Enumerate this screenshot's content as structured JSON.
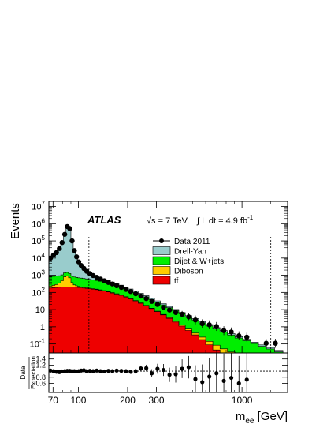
{
  "chart_data": {
    "type": "area",
    "experiment": "ATLAS",
    "energy_label": "√s = 7 TeV,",
    "lumi_label": "∫ L dt =  4.9 fb",
    "lumi_exp": "-1",
    "ylabel": "Events",
    "xlabel_main": "m",
    "xlabel_sub": "ee",
    "xlabel_unit": " [GeV]",
    "ratio_ylabel_top": "Data",
    "ratio_ylabel_bottom": "Expectation",
    "x_scale": "log",
    "xlim": [
      66,
      1900
    ],
    "ylim": [
      0.03,
      20000000
    ],
    "ratio_ylim": [
      0.3,
      1.6
    ],
    "x_ticks": [
      {
        "v": 70,
        "label": "70"
      },
      {
        "v": 100,
        "label": "100"
      },
      {
        "v": 200,
        "label": "200"
      },
      {
        "v": 300,
        "label": "300"
      },
      {
        "v": 1000,
        "label": "1000"
      }
    ],
    "y_ticks": [
      {
        "v": 0.1,
        "base": "10",
        "exp": "-1"
      },
      {
        "v": 1,
        "base": "1",
        "exp": ""
      },
      {
        "v": 10,
        "base": "10",
        "exp": ""
      },
      {
        "v": 100,
        "base": "10",
        "exp": "2"
      },
      {
        "v": 1000,
        "base": "10",
        "exp": "3"
      },
      {
        "v": 10000,
        "base": "10",
        "exp": "4"
      },
      {
        "v": 100000,
        "base": "10",
        "exp": "5"
      },
      {
        "v": 1000000,
        "base": "10",
        "exp": "6"
      },
      {
        "v": 10000000,
        "base": "10",
        "exp": "7"
      }
    ],
    "ratio_ticks": [
      {
        "v": 0.6,
        "label": "0.6"
      },
      {
        "v": 0.8,
        "label": "0.8"
      },
      {
        "v": 1.0,
        "label": "1"
      },
      {
        "v": 1.2,
        "label": "1.2"
      },
      {
        "v": 1.4,
        "label": "1.4"
      }
    ],
    "vlines": [
      116,
      1500
    ],
    "legend": [
      {
        "key": "data",
        "label": "Data 2011"
      },
      {
        "key": "dy",
        "label": "Drell-Yan"
      },
      {
        "key": "dijet",
        "label": "Dijet & W+jets"
      },
      {
        "key": "diboson",
        "label": "Diboson"
      },
      {
        "key": "ttbar",
        "label": "tt̄"
      }
    ],
    "colors": {
      "dy": "#99cccc",
      "dijet": "#00ee00",
      "diboson": "#ffcc00",
      "ttbar": "#ee0000",
      "data": "#000000"
    },
    "bin_edges": [
      66,
      69,
      72,
      75,
      78,
      81,
      84,
      87,
      90,
      93,
      96,
      99,
      102,
      106,
      110,
      115,
      120,
      126,
      133,
      140,
      148,
      157,
      166,
      177,
      189,
      202,
      216,
      232,
      250,
      270,
      292,
      317,
      345,
      376,
      411,
      450,
      494,
      544,
      600,
      663,
      734,
      815,
      906,
      1010,
      1130,
      1260,
      1410,
      1580,
      1780
    ],
    "series": [
      {
        "key": "ttbar",
        "name": "tt̄",
        "values": [
          180,
          190,
          195,
          200,
          205,
          210,
          212,
          212,
          210,
          205,
          200,
          195,
          188,
          180,
          172,
          163,
          155,
          145,
          133,
          120,
          107,
          93,
          80,
          67,
          54,
          42,
          32,
          23.5,
          17,
          11.5,
          7.6,
          4.9,
          3.1,
          1.9,
          1.1,
          0.62,
          0.34,
          0.18,
          0.09,
          0.045,
          0.022,
          0.011,
          0.005,
          0.0025,
          0.001,
          0.0005,
          0.0002,
          0.0001
        ]
      },
      {
        "key": "diboson",
        "name": "Diboson",
        "values": [
          55,
          70,
          95,
          150,
          280,
          600,
          700,
          500,
          160,
          70,
          42,
          28,
          22,
          18,
          15,
          13,
          11.5,
          10,
          8.6,
          7.3,
          6.1,
          5,
          4,
          3.2,
          2.5,
          1.95,
          1.5,
          1.15,
          0.88,
          0.66,
          0.5,
          0.38,
          0.28,
          0.21,
          0.16,
          0.12,
          0.09,
          0.07,
          0.052,
          0.04,
          0.03,
          0.023,
          0.017,
          0.013,
          0.01,
          0.008,
          0.006,
          0.0045
        ]
      },
      {
        "key": "dijet",
        "name": "Dijet & W+jets",
        "values": [
          600,
          600,
          595,
          585,
          575,
          565,
          555,
          545,
          535,
          520,
          505,
          490,
          470,
          448,
          425,
          400,
          370,
          340,
          305,
          270,
          235,
          200,
          168,
          138,
          110,
          86,
          66,
          50,
          37,
          27,
          19.5,
          13.8,
          9.6,
          6.6,
          4.5,
          3,
          2.1,
          1.45,
          0.98,
          0.66,
          0.45,
          0.3,
          0.2,
          0.14,
          0.095,
          0.065,
          0.045,
          0.03
        ]
      },
      {
        "key": "dy",
        "name": "Drell-Yan",
        "values": [
          9000,
          14000,
          20000,
          34000,
          75000,
          230000,
          650000,
          500000,
          95000,
          26000,
          11000,
          5400,
          3100,
          1900,
          1200,
          800,
          560,
          400,
          280,
          200,
          145,
          105,
          76,
          55,
          40,
          28.5,
          20,
          14.2,
          10,
          6.9,
          4.8,
          3.3,
          2.25,
          1.52,
          1.03,
          0.7,
          0.47,
          0.32,
          0.22,
          0.15,
          0.1,
          0.069,
          0.047,
          0.033,
          0.022,
          0.015,
          0.011,
          0.0075
        ]
      }
    ],
    "data_points": [
      {
        "x": 67.5,
        "y": 10000
      },
      {
        "x": 70.5,
        "y": 15000
      },
      {
        "x": 73.5,
        "y": 21000
      },
      {
        "x": 76.5,
        "y": 36000
      },
      {
        "x": 79.5,
        "y": 80000
      },
      {
        "x": 82.5,
        "y": 240000
      },
      {
        "x": 85.5,
        "y": 680000
      },
      {
        "x": 88.5,
        "y": 520000
      },
      {
        "x": 91.5,
        "y": 100000
      },
      {
        "x": 94.5,
        "y": 27500
      },
      {
        "x": 97.5,
        "y": 11800
      },
      {
        "x": 100.5,
        "y": 6000
      },
      {
        "x": 104,
        "y": 3700
      },
      {
        "x": 108,
        "y": 2500
      },
      {
        "x": 112.5,
        "y": 1700
      },
      {
        "x": 117.5,
        "y": 1250
      },
      {
        "x": 123,
        "y": 960
      },
      {
        "x": 129.5,
        "y": 760
      },
      {
        "x": 136.5,
        "y": 600
      },
      {
        "x": 144,
        "y": 480
      },
      {
        "x": 152.5,
        "y": 380
      },
      {
        "x": 161.5,
        "y": 310
      },
      {
        "x": 171.5,
        "y": 245
      },
      {
        "x": 183,
        "y": 195
      },
      {
        "x": 195.5,
        "y": 150
      },
      {
        "x": 209,
        "y": 113
      },
      {
        "x": 224,
        "y": 84
      },
      {
        "x": 241,
        "y": 61
      },
      {
        "x": 260,
        "y": 44
      },
      {
        "x": 281,
        "y": 30
      },
      {
        "x": 304.5,
        "y": 20
      },
      {
        "x": 331,
        "y": 13.5
      },
      {
        "x": 360.5,
        "y": 9.5
      },
      {
        "x": 393.5,
        "y": 6.8
      },
      {
        "x": 430.5,
        "y": 5.4
      },
      {
        "x": 472,
        "y": 3.8
      },
      {
        "x": 519,
        "y": 2.5
      },
      {
        "x": 572,
        "y": 1.5
      },
      {
        "x": 631.5,
        "y": 1.3
      },
      {
        "x": 698.5,
        "y": 1.05
      },
      {
        "x": 774.5,
        "y": 0.6
      },
      {
        "x": 860.5,
        "y": 0.5
      },
      {
        "x": 958,
        "y": 0.3
      },
      {
        "x": 1070,
        "y": 0.25
      },
      {
        "x": 1405,
        "y": 0.11
      },
      {
        "x": 1600,
        "y": 0.11
      }
    ],
    "ratio_points": [
      {
        "x": 67.5,
        "r": 1.02
      },
      {
        "x": 70.5,
        "r": 1.0
      },
      {
        "x": 73.5,
        "r": 0.98
      },
      {
        "x": 76.5,
        "r": 0.97
      },
      {
        "x": 79.5,
        "r": 0.99
      },
      {
        "x": 82.5,
        "r": 1.0
      },
      {
        "x": 85.5,
        "r": 1.01
      },
      {
        "x": 88.5,
        "r": 1.01
      },
      {
        "x": 91.5,
        "r": 1.0
      },
      {
        "x": 94.5,
        "r": 1.0
      },
      {
        "x": 97.5,
        "r": 0.99
      },
      {
        "x": 100.5,
        "r": 1.0
      },
      {
        "x": 104,
        "r": 1.02
      },
      {
        "x": 108,
        "r": 1.03
      },
      {
        "x": 112.5,
        "r": 1.0
      },
      {
        "x": 117.5,
        "r": 1.01
      },
      {
        "x": 123,
        "r": 1.0
      },
      {
        "x": 129.5,
        "r": 1.02
      },
      {
        "x": 136.5,
        "r": 1.0
      },
      {
        "x": 144,
        "r": 0.99
      },
      {
        "x": 152.5,
        "r": 1.01
      },
      {
        "x": 161.5,
        "r": 1.0
      },
      {
        "x": 171.5,
        "r": 1.02
      },
      {
        "x": 183,
        "r": 1.01
      },
      {
        "x": 195.5,
        "r": 1.0
      },
      {
        "x": 209,
        "r": 0.98
      },
      {
        "x": 224,
        "r": 1.0
      },
      {
        "x": 241,
        "r": 1.09
      },
      {
        "x": 260,
        "r": 1.1
      },
      {
        "x": 281,
        "r": 0.93
      },
      {
        "x": 304.5,
        "r": 1.08
      },
      {
        "x": 331,
        "r": 1.04
      },
      {
        "x": 360.5,
        "r": 0.88
      },
      {
        "x": 393.5,
        "r": 0.9
      },
      {
        "x": 430.5,
        "r": 1.08
      },
      {
        "x": 472,
        "r": 1.13
      },
      {
        "x": 519,
        "r": 0.74
      },
      {
        "x": 572,
        "r": 0.64
      },
      {
        "x": 631.5,
        "r": 0.82
      },
      {
        "x": 698.5,
        "r": 0.93
      },
      {
        "x": 774.5,
        "r": 0.68
      },
      {
        "x": 860.5,
        "r": 0.78
      },
      {
        "x": 958,
        "r": 0.6
      },
      {
        "x": 1070,
        "r": 0.72
      }
    ],
    "grid": false,
    "legend_position": "top-right"
  }
}
